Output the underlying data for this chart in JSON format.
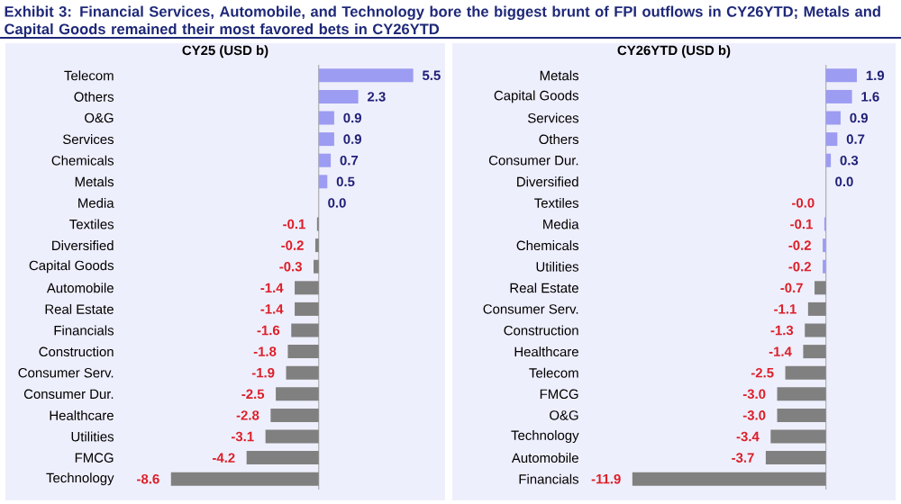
{
  "chart_data": [
    {
      "type": "bar",
      "orientation": "horizontal",
      "title": "Exhibit 3: Financial Services, Automobile, and Technology bore the biggest brunt of FPI outflows in CY26YTD; Metals and Capital Goods remained their most favored bets in CY26YTD",
      "subtitle": "CY25 (USD b)",
      "categories": [
        "Telecom",
        "Others",
        "O&G",
        "Services",
        "Chemicals",
        "Metals",
        "Media",
        "Textiles",
        "Diversified",
        "Capital Goods",
        "Automobile",
        "Real Estate",
        "Financials",
        "Construction",
        "Consumer Serv.",
        "Consumer Dur.",
        "Healthcare",
        "Utilities",
        "FMCG",
        "Technology"
      ],
      "values": [
        5.5,
        2.3,
        0.9,
        0.9,
        0.7,
        0.5,
        0.0,
        -0.1,
        -0.2,
        -0.3,
        -1.4,
        -1.4,
        -1.6,
        -1.8,
        -1.9,
        -2.5,
        -2.8,
        -3.1,
        -4.2,
        -8.6
      ],
      "value_labels": [
        "5.5",
        "2.3",
        "0.9",
        "0.9",
        "0.7",
        "0.5",
        "0.0",
        "-0.1",
        "-0.2",
        "-0.3",
        "-1.4",
        "-1.4",
        "-1.6",
        "-1.8",
        "-1.9",
        "-2.5",
        "-2.8",
        "-3.1",
        "-4.2",
        "-8.6"
      ],
      "colors": [
        "#9c9cf2",
        "#9c9cf2",
        "#9c9cf2",
        "#9c9cf2",
        "#9c9cf2",
        "#9c9cf2",
        "#9c9cf2",
        "#808080",
        "#808080",
        "#808080",
        "#808080",
        "#808080",
        "#808080",
        "#808080",
        "#808080",
        "#808080",
        "#808080",
        "#808080",
        "#808080",
        "#808080"
      ],
      "tick_labels": "y"
    },
    {
      "type": "bar",
      "orientation": "horizontal",
      "subtitle": "CY26YTD (USD b)",
      "categories": [
        "Metals",
        "Capital Goods",
        "Services",
        "Others",
        "Consumer Dur.",
        "Diversified",
        "Textiles",
        "Media",
        "Chemicals",
        "Utilities",
        "Real Estate",
        "Consumer Serv.",
        "Construction",
        "Healthcare",
        "Telecom",
        "FMCG",
        "O&G",
        "Technology",
        "Automobile",
        "Financials"
      ],
      "values": [
        1.9,
        1.6,
        0.9,
        0.7,
        0.3,
        0.0,
        -0.0,
        -0.1,
        -0.2,
        -0.2,
        -0.7,
        -1.1,
        -1.3,
        -1.4,
        -2.5,
        -3.0,
        -3.0,
        -3.4,
        -3.7,
        -11.9
      ],
      "value_labels": [
        "1.9",
        "1.6",
        "0.9",
        "0.7",
        "0.3",
        "0.0",
        "-0.0",
        "-0.1",
        "-0.2",
        "-0.2",
        "-0.7",
        "-1.1",
        "-1.3",
        "-1.4",
        "-2.5",
        "-3.0",
        "-3.0",
        "-3.4",
        "-3.7",
        "-11.9"
      ],
      "colors": [
        "#9c9cf2",
        "#9c9cf2",
        "#9c9cf2",
        "#9c9cf2",
        "#9c9cf2",
        "#9c9cf2",
        "#9c9cf2",
        "#9c9cf2",
        "#9c9cf2",
        "#9c9cf2",
        "#808080",
        "#808080",
        "#808080",
        "#808080",
        "#808080",
        "#808080",
        "#808080",
        "#808080",
        "#808080",
        "#808080"
      ],
      "tick_labels": "y"
    }
  ]
}
